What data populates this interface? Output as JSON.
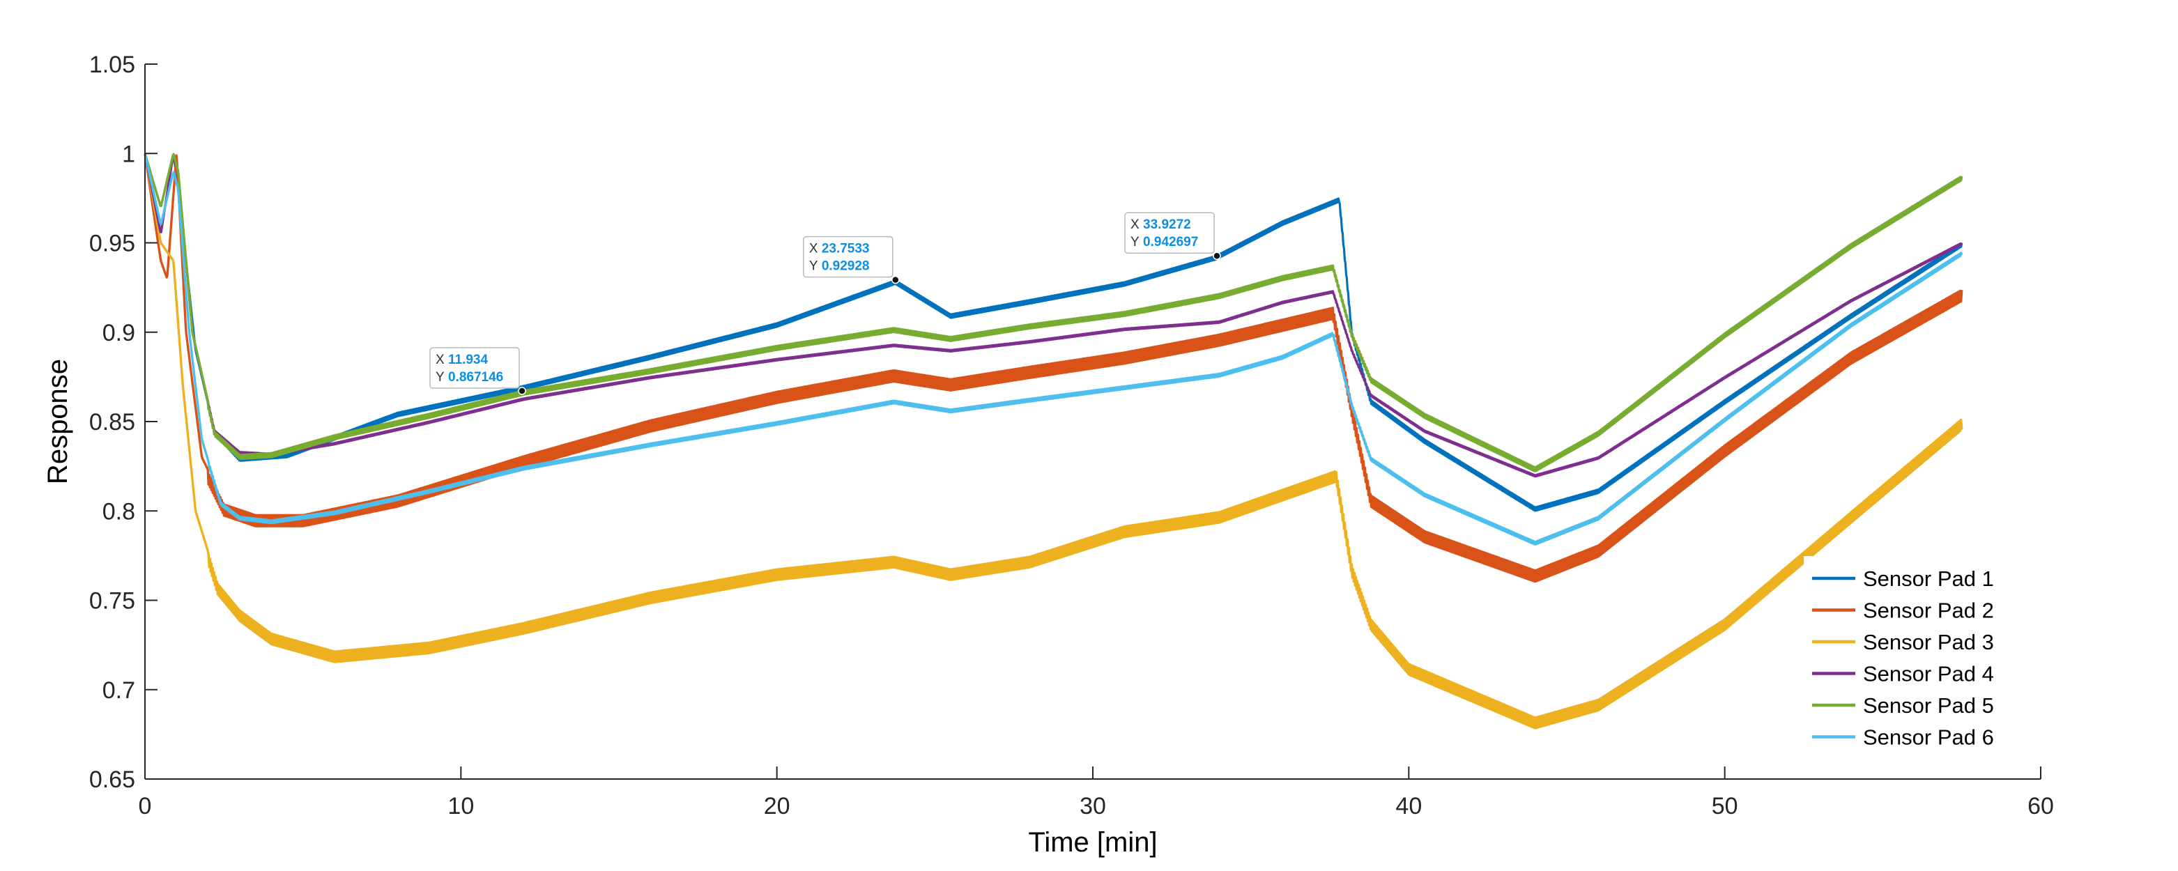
{
  "chart_data": {
    "type": "line",
    "title": "",
    "xlabel": "Time [min]",
    "ylabel": "Response",
    "xlim": [
      0,
      60
    ],
    "ylim": [
      0.65,
      1.05
    ],
    "xticks": [
      0,
      10,
      20,
      30,
      40,
      50,
      60
    ],
    "xtick_labels": [
      "0",
      "10",
      "20",
      "30",
      "40",
      "50",
      "60"
    ],
    "yticks": [
      0.65,
      0.7,
      0.75,
      0.8,
      0.85,
      0.9,
      0.95,
      1,
      1.05
    ],
    "ytick_labels": [
      "0.65",
      "0.7",
      "0.75",
      "0.8",
      "0.85",
      "0.9",
      "0.95",
      "1",
      "1.05"
    ],
    "grid": false,
    "legend_position": "bottom-right",
    "series": [
      {
        "name": "Sensor Pad 1",
        "color": "#0072BD",
        "noise": 0.008,
        "x": [
          0,
          0.5,
          0.9,
          1.05,
          1.6,
          2.2,
          3,
          4.5,
          8,
          12,
          16,
          20,
          23.75,
          25.5,
          28,
          31,
          33.9,
          36,
          37.8,
          38.2,
          38.8,
          40.5,
          44,
          46,
          50,
          54,
          57.5
        ],
        "y": [
          1,
          0.97,
          1,
          0.98,
          0.89,
          0.845,
          0.83,
          0.832,
          0.855,
          0.87,
          0.887,
          0.905,
          0.929,
          0.91,
          0.918,
          0.928,
          0.9427,
          0.962,
          0.975,
          0.9,
          0.862,
          0.84,
          0.802,
          0.812,
          0.862,
          0.91,
          0.95
        ]
      },
      {
        "name": "Sensor Pad 2",
        "color": "#D95319",
        "noise": 0.01,
        "x": [
          0,
          0.5,
          0.7,
          1,
          1.3,
          1.8,
          2.5,
          3.5,
          5,
          8,
          12,
          16,
          20,
          23.7,
          25.5,
          28,
          31,
          34,
          37.6,
          38.2,
          38.8,
          40.5,
          44,
          46,
          50,
          54,
          57.5
        ],
        "y": [
          1,
          0.94,
          0.93,
          1,
          0.9,
          0.83,
          0.805,
          0.799,
          0.799,
          0.81,
          0.832,
          0.852,
          0.868,
          0.88,
          0.875,
          0.882,
          0.89,
          0.9,
          0.915,
          0.86,
          0.81,
          0.79,
          0.768,
          0.782,
          0.838,
          0.89,
          0.925
        ]
      },
      {
        "name": "Sensor Pad 3",
        "color": "#EDB120",
        "noise": 0.012,
        "x": [
          0,
          0.5,
          0.9,
          1.2,
          1.6,
          2.3,
          3,
          4,
          6,
          9,
          12,
          16,
          20,
          23.7,
          25.5,
          28,
          31,
          34,
          37.7,
          38.2,
          38.8,
          40,
          44,
          46,
          50,
          54,
          57.5
        ],
        "y": [
          1,
          0.95,
          0.94,
          0.87,
          0.8,
          0.76,
          0.745,
          0.732,
          0.722,
          0.727,
          0.738,
          0.755,
          0.768,
          0.775,
          0.768,
          0.775,
          0.792,
          0.8,
          0.823,
          0.77,
          0.74,
          0.715,
          0.685,
          0.695,
          0.74,
          0.8,
          0.852
        ]
      },
      {
        "name": "Sensor Pad 4",
        "color": "#7E2F8E",
        "noise": 0.002,
        "x": [
          0,
          0.5,
          0.9,
          1.05,
          1.5,
          2.2,
          3,
          4,
          6,
          9,
          12,
          16,
          20,
          23.7,
          25.5,
          28,
          31,
          34,
          36,
          37.6,
          38.2,
          38.8,
          40.5,
          44,
          46,
          50,
          54,
          57.5
        ],
        "y": [
          1,
          0.955,
          1,
          0.99,
          0.9,
          0.845,
          0.833,
          0.832,
          0.838,
          0.85,
          0.863,
          0.875,
          0.885,
          0.893,
          0.89,
          0.895,
          0.902,
          0.906,
          0.917,
          0.923,
          0.89,
          0.865,
          0.845,
          0.82,
          0.83,
          0.875,
          0.918,
          0.95
        ]
      },
      {
        "name": "Sensor Pad 5",
        "color": "#77AC30",
        "noise": 0.003,
        "x": [
          0,
          0.5,
          0.9,
          1.05,
          1.5,
          2.2,
          3,
          4,
          6,
          9,
          12,
          16,
          20,
          23.7,
          25.5,
          28,
          31,
          34,
          36,
          37.6,
          38.2,
          38.8,
          40.5,
          44,
          46,
          50,
          54,
          57.5
        ],
        "y": [
          1,
          0.97,
          1,
          0.99,
          0.9,
          0.845,
          0.832,
          0.833,
          0.843,
          0.855,
          0.868,
          0.88,
          0.893,
          0.903,
          0.898,
          0.905,
          0.912,
          0.922,
          0.932,
          0.938,
          0.9,
          0.875,
          0.855,
          0.825,
          0.845,
          0.9,
          0.95,
          0.988
        ]
      },
      {
        "name": "Sensor Pad 6",
        "color": "#4DBEEE",
        "noise": 0.0025,
        "x": [
          0,
          0.5,
          0.9,
          1.05,
          1.4,
          1.8,
          2.4,
          3,
          4,
          6,
          9,
          12,
          16,
          20,
          23.7,
          25.5,
          28,
          31,
          34,
          36,
          37.6,
          38.2,
          38.8,
          40.5,
          44,
          46,
          50,
          54,
          57.5
        ],
        "y": [
          1,
          0.96,
          0.99,
          0.98,
          0.9,
          0.84,
          0.805,
          0.797,
          0.795,
          0.8,
          0.812,
          0.825,
          0.838,
          0.85,
          0.862,
          0.857,
          0.863,
          0.87,
          0.877,
          0.887,
          0.9,
          0.86,
          0.83,
          0.81,
          0.783,
          0.797,
          0.852,
          0.905,
          0.945
        ]
      }
    ],
    "datatips": [
      {
        "x_label": "X",
        "x_value": "11.934",
        "y_label": "Y",
        "y_value": "0.867146",
        "x": 11.934,
        "y": 0.867146
      },
      {
        "x_label": "X",
        "x_value": "23.7533",
        "y_label": "Y",
        "y_value": "0.92928",
        "x": 23.7533,
        "y": 0.92928
      },
      {
        "x_label": "X",
        "x_value": "33.9272",
        "y_label": "Y",
        "y_value": "0.942697",
        "x": 33.9272,
        "y": 0.942697
      }
    ]
  }
}
